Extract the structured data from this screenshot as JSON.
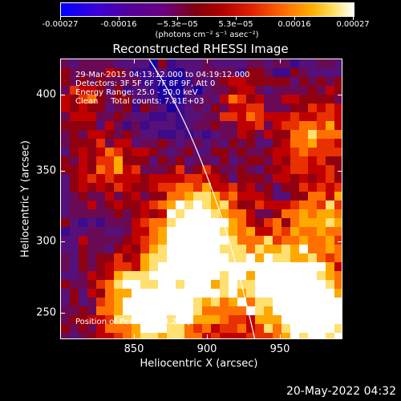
{
  "colorbar": {
    "ticks": [
      "-0.00027",
      "-0.00016",
      "−5.3e−05",
      "5.3e−05",
      "0.00016",
      "0.00027"
    ],
    "units": "(photons cm⁻² s⁻¹ asec⁻²)"
  },
  "title": "Reconstructed RHESSI Image",
  "annotations": {
    "time": "29-Mar-2015 04:13:12.000 to 04:19:12.000",
    "detectors": "Detectors: 3F 5F 6F 7F 8F 9F, Att 0",
    "energy": "Energy Range: 25.0 - 50.0 keV",
    "clean": "Clean     Total counts: 7.81E+03",
    "peak": "Position of Peak = [954,284]"
  },
  "axes": {
    "xlabel": "Heliocentric X (arcsec)",
    "ylabel": "Heliocentric Y (arcsec)",
    "xticks": [
      "850",
      "900",
      "950"
    ],
    "yticks": [
      "400",
      "350",
      "300",
      "250"
    ]
  },
  "datestamp": "20-May-2022 04:32",
  "colors": {
    "background": "#000000",
    "limb": "#ffffff"
  }
}
